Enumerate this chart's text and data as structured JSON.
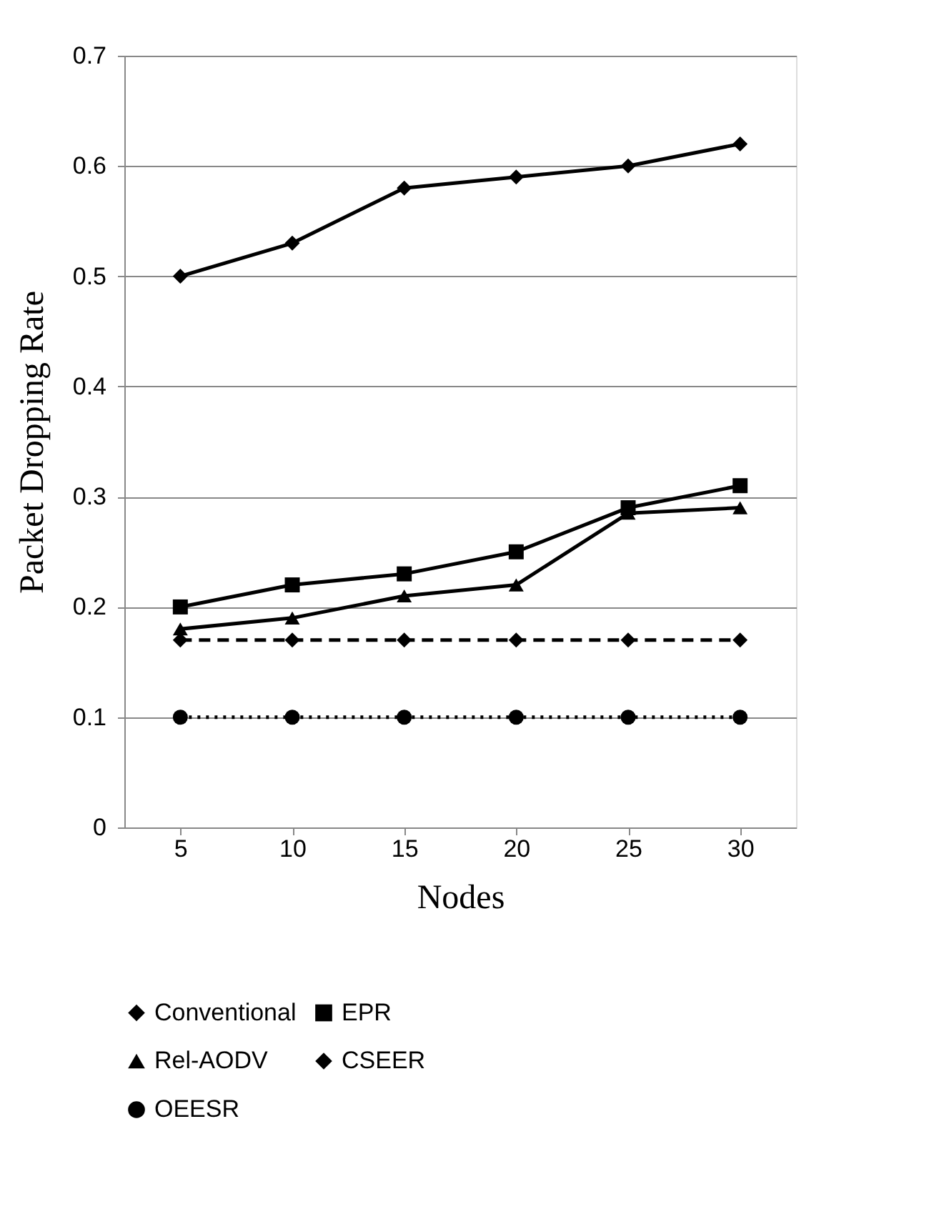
{
  "chart_data": {
    "type": "line",
    "xlabel": "Nodes",
    "ylabel": "Packet Dropping Rate",
    "categories": [
      "5",
      "10",
      "15",
      "20",
      "25",
      "30"
    ],
    "ylim": [
      0,
      0.7
    ],
    "yticks": [
      0,
      0.1,
      0.2,
      0.3,
      0.4,
      0.5,
      0.6,
      0.7
    ],
    "grid": "y",
    "legend": "bottom",
    "series": [
      {
        "name": "Conventional",
        "color": "#000000",
        "marker": "diamond",
        "line_style": "solid",
        "values": [
          0.5,
          0.53,
          0.58,
          0.59,
          0.6,
          0.62
        ]
      },
      {
        "name": "EPR",
        "color": "#000000",
        "marker": "square",
        "line_style": "solid",
        "values": [
          0.2,
          0.22,
          0.23,
          0.25,
          0.29,
          0.31
        ]
      },
      {
        "name": "Rel-AODV",
        "color": "#000000",
        "marker": "triangle",
        "line_style": "solid",
        "values": [
          0.18,
          0.19,
          0.21,
          0.22,
          0.285,
          0.29
        ]
      },
      {
        "name": "CSEER",
        "color": "#000000",
        "marker": "diamond",
        "line_style": "dashed",
        "values": [
          0.17,
          0.17,
          0.17,
          0.17,
          0.17,
          0.17
        ]
      },
      {
        "name": "OEESR",
        "color": "#000000",
        "marker": "circle",
        "line_style": "dotted",
        "values": [
          0.1,
          0.1,
          0.1,
          0.1,
          0.1,
          0.1
        ]
      }
    ]
  }
}
